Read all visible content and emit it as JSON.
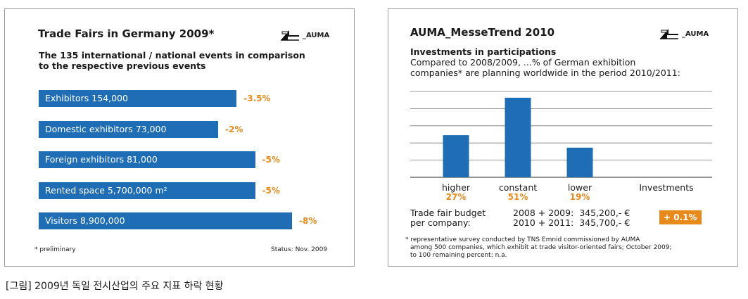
{
  "left_panel": {
    "title": "Trade Fairs in Germany 2009*",
    "logo_text": "_AUMA",
    "subtitle_line1": "The 135 international / national events in comparison",
    "subtitle_line2": "to the respective previous events",
    "footnote": "* preliminary",
    "status": "Status: Nov. 2009"
  },
  "right_panel": {
    "title": "AUMA_MesseTrend 2010",
    "logo_text": "_AUMA",
    "heading": "Investments in participations",
    "desc_line1": "Compared to 2008/2009, ...% of German exhibition",
    "desc_line2": "companies* are planning worldwide in the period 2010/2011:",
    "axis_label": "Investments",
    "budget_label_1": "Trade fair budget",
    "budget_label_2": "per company:",
    "budget_row_1": "2008 + 2009:  345,200,- €",
    "budget_row_2": "2010 + 2011:  345,700,- €",
    "badge": "+ 0.1%",
    "note_1": "* representative survey conducted by TNS Emnid commissioned by AUMA",
    "note_2": "among 500 companies, which exhibit at trade visitor-oriented fairs; October 2009;",
    "note_3": "to 100 remaining percent: n.a."
  },
  "caption": "[그림] 2009년 독일 전시산업의 주요 지표 하락 현황",
  "chart_data": [
    {
      "type": "bar",
      "orientation": "horizontal",
      "title": "Trade Fairs in Germany 2009*",
      "categories": [
        "Exhibitors 154,000",
        "Domestic exhibitors 73,000",
        "Foreign exhibitors 81,000",
        "Rented space 5,700,000 m²",
        "Visitors 8,900,000"
      ],
      "values": [
        154000,
        73000,
        81000,
        5700000,
        8900000
      ],
      "change_labels": [
        "-3.5%",
        "-2%",
        "-5%",
        "-5%",
        "-8%"
      ],
      "change_values": [
        -3.5,
        -2,
        -5,
        -5,
        -8
      ],
      "colors": {
        "bar": "#1f6eb5",
        "change": "#e8891c"
      }
    },
    {
      "type": "bar",
      "title": "AUMA_MesseTrend 2010",
      "categories": [
        "higher",
        "constant",
        "lower"
      ],
      "values": [
        27,
        51,
        19
      ],
      "value_labels": [
        "27%",
        "51%",
        "19%"
      ],
      "ylim": [
        0,
        55
      ],
      "grid": true,
      "colors": {
        "bar": "#1f6eb5",
        "label": "#e8891c"
      }
    }
  ]
}
